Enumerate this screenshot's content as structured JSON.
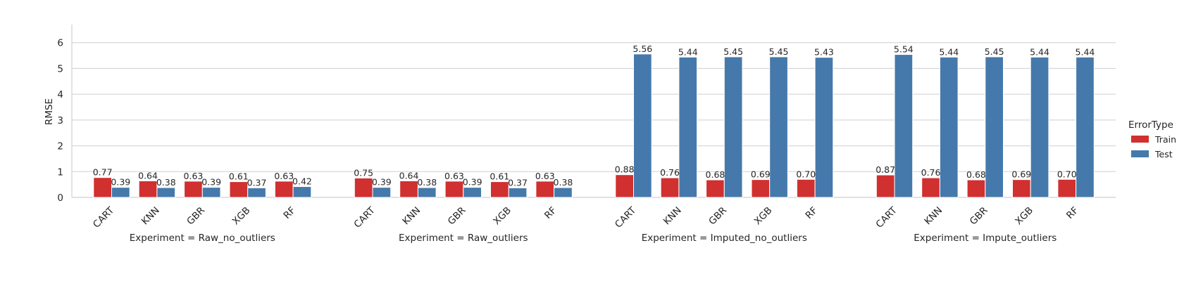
{
  "chart_data": {
    "type": "bar",
    "ylabel": "RMSE",
    "ylim": [
      0,
      6.7
    ],
    "yticks": [
      "0",
      "1",
      "2",
      "3",
      "4",
      "5",
      "6"
    ],
    "grid": "horizontal",
    "legend": {
      "title": "ErrorType",
      "placement": "right",
      "entries": [
        {
          "label": "Train",
          "color": "#d0302f"
        },
        {
          "label": "Test",
          "color": "#4679ab"
        }
      ]
    },
    "facet_label_prefix": "Experiment = ",
    "panels": [
      {
        "title": "Experiment = Raw_no_outliers",
        "categories": [
          "CART",
          "KNN",
          "GBR",
          "XGB",
          "RF"
        ],
        "series": [
          {
            "name": "Train",
            "values": [
              0.77,
              0.64,
              0.63,
              0.61,
              0.63
            ]
          },
          {
            "name": "Test",
            "values": [
              0.39,
              0.38,
              0.39,
              0.37,
              0.42
            ]
          }
        ]
      },
      {
        "title": "Experiment = Raw_outliers",
        "categories": [
          "CART",
          "KNN",
          "GBR",
          "XGB",
          "RF"
        ],
        "series": [
          {
            "name": "Train",
            "values": [
              0.75,
              0.64,
              0.63,
              0.61,
              0.63
            ]
          },
          {
            "name": "Test",
            "values": [
              0.39,
              0.38,
              0.39,
              0.37,
              0.38
            ]
          }
        ]
      },
      {
        "title": "Experiment = Imputed_no_outliers",
        "categories": [
          "CART",
          "KNN",
          "GBR",
          "XGB",
          "RF"
        ],
        "series": [
          {
            "name": "Train",
            "values": [
              0.88,
              0.76,
              0.68,
              0.69,
              0.7
            ]
          },
          {
            "name": "Test",
            "values": [
              5.56,
              5.44,
              5.45,
              5.45,
              5.43
            ]
          }
        ]
      },
      {
        "title": "Experiment = Impute_outliers",
        "categories": [
          "CART",
          "KNN",
          "GBR",
          "XGB",
          "RF"
        ],
        "series": [
          {
            "name": "Train",
            "values": [
              0.87,
              0.76,
              0.68,
              0.69,
              0.7
            ]
          },
          {
            "name": "Test",
            "values": [
              5.54,
              5.44,
              5.45,
              5.44,
              5.44
            ]
          }
        ]
      }
    ]
  }
}
